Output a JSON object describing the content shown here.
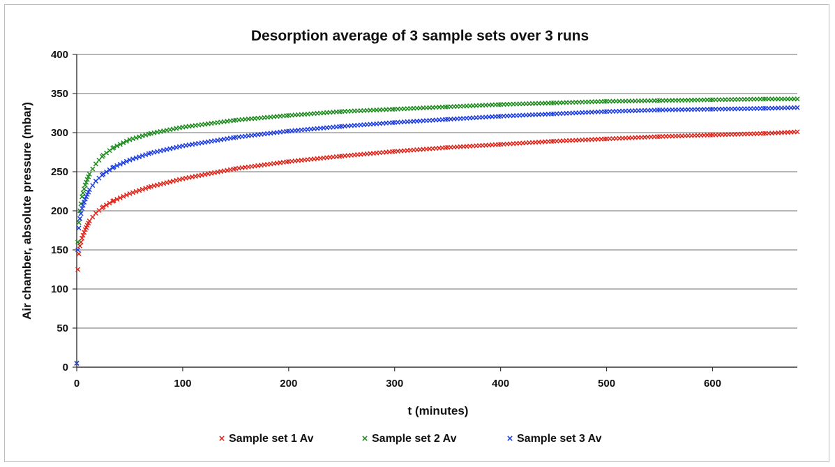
{
  "chart_data": {
    "type": "scatter",
    "title": "Desorption average of 3 sample sets over 3 runs",
    "xlabel": "t (minutes)",
    "ylabel": "Air chamber, absolute pressure (mbar)",
    "xlim": [
      0,
      680
    ],
    "ylim": [
      0,
      400
    ],
    "xticks": [
      0,
      100,
      200,
      300,
      400,
      500,
      600
    ],
    "yticks": [
      0,
      50,
      100,
      150,
      200,
      250,
      300,
      350,
      400
    ],
    "grid": "horizontal",
    "legend_position": "bottom",
    "marker": "x",
    "series": [
      {
        "name": "Sample set 1 Av",
        "color": "#e0261b",
        "points": [
          [
            0,
            5
          ],
          [
            1,
            125
          ],
          [
            2,
            145
          ],
          [
            3,
            155
          ],
          [
            5,
            165
          ],
          [
            8,
            176
          ],
          [
            12,
            187
          ],
          [
            18,
            197
          ],
          [
            25,
            205
          ],
          [
            35,
            213
          ],
          [
            50,
            222
          ],
          [
            70,
            231
          ],
          [
            100,
            241
          ],
          [
            150,
            254
          ],
          [
            200,
            263
          ],
          [
            250,
            270
          ],
          [
            300,
            276
          ],
          [
            350,
            281
          ],
          [
            400,
            285
          ],
          [
            450,
            289
          ],
          [
            500,
            292
          ],
          [
            550,
            295
          ],
          [
            600,
            297
          ],
          [
            650,
            299
          ],
          [
            680,
            301
          ]
        ]
      },
      {
        "name": "Sample set 2 Av",
        "color": "#1e8c1e",
        "points": [
          [
            0,
            5
          ],
          [
            1,
            160
          ],
          [
            2,
            185
          ],
          [
            3,
            200
          ],
          [
            5,
            218
          ],
          [
            8,
            233
          ],
          [
            12,
            247
          ],
          [
            18,
            260
          ],
          [
            25,
            271
          ],
          [
            35,
            281
          ],
          [
            50,
            291
          ],
          [
            70,
            299
          ],
          [
            100,
            307
          ],
          [
            150,
            316
          ],
          [
            200,
            322
          ],
          [
            250,
            327
          ],
          [
            300,
            330
          ],
          [
            350,
            333
          ],
          [
            400,
            336
          ],
          [
            450,
            338
          ],
          [
            500,
            340
          ],
          [
            550,
            341
          ],
          [
            600,
            342
          ],
          [
            650,
            343
          ],
          [
            680,
            343
          ]
        ]
      },
      {
        "name": "Sample set 3 Av",
        "color": "#1f3fe0",
        "points": [
          [
            0,
            5
          ],
          [
            1,
            150
          ],
          [
            2,
            178
          ],
          [
            3,
            190
          ],
          [
            5,
            203
          ],
          [
            8,
            215
          ],
          [
            12,
            227
          ],
          [
            18,
            238
          ],
          [
            25,
            247
          ],
          [
            35,
            256
          ],
          [
            50,
            265
          ],
          [
            70,
            274
          ],
          [
            100,
            283
          ],
          [
            150,
            294
          ],
          [
            200,
            302
          ],
          [
            250,
            308
          ],
          [
            300,
            313
          ],
          [
            350,
            317
          ],
          [
            400,
            321
          ],
          [
            450,
            324
          ],
          [
            500,
            327
          ],
          [
            550,
            329
          ],
          [
            600,
            330
          ],
          [
            650,
            331
          ],
          [
            680,
            332
          ]
        ]
      }
    ]
  }
}
